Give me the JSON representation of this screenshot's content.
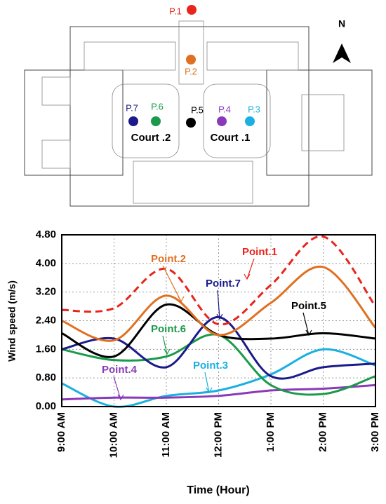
{
  "floor_plan": {
    "points": [
      {
        "label": "P.1"
      },
      {
        "label": "P.2"
      },
      {
        "label": "P.3"
      },
      {
        "label": "P.4"
      },
      {
        "label": "P.5"
      },
      {
        "label": "P.6"
      },
      {
        "label": "P.7"
      }
    ],
    "courts": [
      "Court .2",
      "Court .1"
    ],
    "north": "N"
  },
  "chart_data": {
    "type": "line",
    "x_label": "Time (Hour)",
    "y_label": "Wind speed (m/s)",
    "categories": [
      "9:00 AM",
      "10:00 AM",
      "11:00 AM",
      "12:00 PM",
      "1:00 PM",
      "2:00 PM",
      "3:00 PM"
    ],
    "ylim": [
      0,
      4.8
    ],
    "yticks": [
      {
        "value": 0,
        "label": "0.00"
      },
      {
        "value": 0.8,
        "label": "0.80"
      },
      {
        "value": 1.6,
        "label": "1.60"
      },
      {
        "value": 2.4,
        "label": "2.40"
      },
      {
        "value": 3.2,
        "label": "3.20"
      },
      {
        "value": 4,
        "label": "4.00"
      },
      {
        "value": 4.8,
        "label": "4.80"
      }
    ],
    "grid": true,
    "series": [
      {
        "name": "Point.1",
        "color": "#e8241c",
        "dashed": true,
        "values": [
          2.7,
          2.75,
          3.85,
          2.3,
          3.4,
          4.75,
          2.8
        ]
      },
      {
        "name": "Point.2",
        "color": "#e07020",
        "values": [
          2.4,
          1.85,
          3.1,
          2.0,
          2.9,
          3.9,
          2.2
        ]
      },
      {
        "name": "Point.3",
        "color": "#1ab0e0",
        "values": [
          0.65,
          0.0,
          0.3,
          0.45,
          0.9,
          1.6,
          1.15
        ]
      },
      {
        "name": "Point.4",
        "color": "#8a3ab8",
        "values": [
          0.2,
          0.25,
          0.25,
          0.3,
          0.45,
          0.5,
          0.6
        ]
      },
      {
        "name": "Point.5",
        "color": "#000000",
        "values": [
          2.05,
          1.4,
          2.85,
          2.0,
          1.9,
          2.05,
          1.9
        ]
      },
      {
        "name": "Point.6",
        "color": "#1a9a4a",
        "values": [
          1.6,
          1.3,
          1.4,
          2.0,
          0.6,
          0.35,
          0.85
        ]
      },
      {
        "name": "Point.7",
        "color": "#1a1a8a",
        "values": [
          1.6,
          1.9,
          1.1,
          2.5,
          0.85,
          1.1,
          1.2
        ]
      }
    ]
  }
}
